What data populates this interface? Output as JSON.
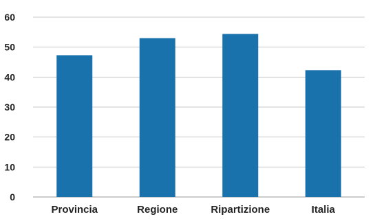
{
  "chart_data": {
    "type": "bar",
    "categories": [
      "Provincia",
      "Regione",
      "Ripartizione",
      "Italia"
    ],
    "values": [
      47.3,
      53.0,
      54.4,
      42.3
    ],
    "title": "",
    "xlabel": "",
    "ylabel": "",
    "ylim": [
      0,
      60
    ],
    "yticks": [
      0,
      10,
      20,
      30,
      40,
      50,
      60
    ],
    "grid": true,
    "legend": "none",
    "colors": {
      "bar": "#1a72ad",
      "grid": "#c8c8c8",
      "text": "#222222"
    }
  }
}
